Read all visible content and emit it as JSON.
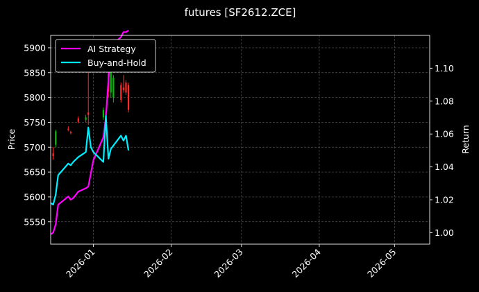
{
  "chart_data": {
    "type": "line",
    "title": "futures [SF2612.ZCE]",
    "ylabel_left": "Price",
    "ylabel_right": "Return",
    "x_tick_labels": [
      "2026-01",
      "2026-02",
      "2026-03",
      "2026-04",
      "2026-05"
    ],
    "x_tick_dates": [
      "2026-01-01",
      "2026-02-01",
      "2026-03-01",
      "2026-04-01",
      "2026-05-01"
    ],
    "xlim": [
      "2025-12-15",
      "2026-05-15"
    ],
    "ylim_left": [
      5505,
      5925
    ],
    "yticks_left": [
      5550,
      5600,
      5650,
      5700,
      5750,
      5800,
      5850,
      5900
    ],
    "ylim_right": [
      0.993,
      1.12
    ],
    "yticks_right": [
      1.0,
      1.02,
      1.04,
      1.06,
      1.08,
      1.1
    ],
    "grid": true,
    "legend_position": "top-left",
    "series": [
      {
        "name": "AI Strategy",
        "color": "#ff00ff",
        "axis": "right",
        "x": [
          "2025-12-15",
          "2025-12-16",
          "2025-12-17",
          "2025-12-18",
          "2025-12-22",
          "2025-12-23",
          "2025-12-24",
          "2025-12-25",
          "2025-12-26",
          "2025-12-29",
          "2025-12-30",
          "2026-01-01",
          "2026-01-05",
          "2026-01-06",
          "2026-01-07",
          "2026-01-08",
          "2026-01-09",
          "2026-01-12",
          "2026-01-13",
          "2026-01-14",
          "2026-01-15"
        ],
        "values": [
          0.999,
          1.0,
          1.005,
          1.017,
          1.022,
          1.02,
          1.021,
          1.023,
          1.025,
          1.027,
          1.028,
          1.044,
          1.058,
          1.07,
          1.093,
          1.11,
          1.115,
          1.119,
          1.122,
          1.122,
          1.123
        ]
      },
      {
        "name": "Buy-and-Hold",
        "color": "#00eeff",
        "axis": "right",
        "x": [
          "2025-12-15",
          "2025-12-16",
          "2025-12-17",
          "2025-12-18",
          "2025-12-22",
          "2025-12-23",
          "2025-12-24",
          "2025-12-26",
          "2025-12-29",
          "2025-12-30",
          "2025-12-31",
          "2026-01-01",
          "2026-01-05",
          "2026-01-06",
          "2026-01-07",
          "2026-01-08",
          "2026-01-09",
          "2026-01-12",
          "2026-01-13",
          "2026-01-14",
          "2026-01-15"
        ],
        "values": [
          1.018,
          1.017,
          1.023,
          1.035,
          1.042,
          1.041,
          1.043,
          1.046,
          1.049,
          1.064,
          1.052,
          1.049,
          1.043,
          1.071,
          1.045,
          1.051,
          1.053,
          1.059,
          1.056,
          1.059,
          1.05
        ]
      }
    ],
    "candles": {
      "up_color": "#00c000",
      "down_color": "#ff2a2a",
      "items": [
        {
          "date": "2025-12-16",
          "open": 5688,
          "high": 5700,
          "low": 5675,
          "close": 5682
        },
        {
          "date": "2025-12-17",
          "open": 5705,
          "high": 5735,
          "low": 5700,
          "close": 5732
        },
        {
          "date": "2025-12-22",
          "open": 5737,
          "high": 5742,
          "low": 5732,
          "close": 5735
        },
        {
          "date": "2025-12-23",
          "open": 5730,
          "high": 5733,
          "low": 5726,
          "close": 5728
        },
        {
          "date": "2025-12-26",
          "open": 5758,
          "high": 5762,
          "low": 5748,
          "close": 5751
        },
        {
          "date": "2025-12-29",
          "open": 5755,
          "high": 5765,
          "low": 5750,
          "close": 5760
        },
        {
          "date": "2025-12-30",
          "open": 5770,
          "high": 5860,
          "low": 5745,
          "close": 5765
        },
        {
          "date": "2026-01-05",
          "open": 5760,
          "high": 5780,
          "low": 5755,
          "close": 5775
        },
        {
          "date": "2026-01-06",
          "open": 5770,
          "high": 5775,
          "low": 5750,
          "close": 5752
        },
        {
          "date": "2026-01-07",
          "open": 5848,
          "high": 5858,
          "low": 5800,
          "close": 5812
        },
        {
          "date": "2026-01-08",
          "open": 5810,
          "high": 5860,
          "low": 5800,
          "close": 5855
        },
        {
          "date": "2026-01-09",
          "open": 5800,
          "high": 5845,
          "low": 5790,
          "close": 5840
        },
        {
          "date": "2026-01-12",
          "open": 5825,
          "high": 5830,
          "low": 5790,
          "close": 5795
        },
        {
          "date": "2026-01-13",
          "open": 5820,
          "high": 5845,
          "low": 5810,
          "close": 5815
        },
        {
          "date": "2026-01-14",
          "open": 5830,
          "high": 5835,
          "low": 5805,
          "close": 5810
        },
        {
          "date": "2026-01-15",
          "open": 5825,
          "high": 5830,
          "low": 5770,
          "close": 5775
        }
      ]
    }
  }
}
